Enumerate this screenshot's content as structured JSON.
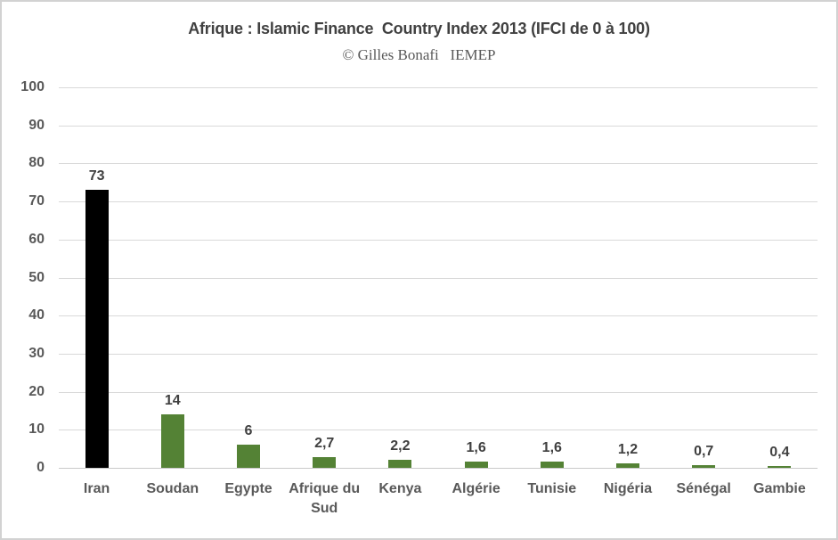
{
  "chart_data": {
    "type": "bar",
    "title": "Afrique : Islamic Finance  Country Index 2013 (IFCI de 0 à 100)",
    "subtitle": "© Gilles Bonafi   IEMEP",
    "categories": [
      "Iran",
      "Soudan",
      "Egypte",
      "Afrique du Sud",
      "Kenya",
      "Algérie",
      "Tunisie",
      "Nigéria",
      "Sénégal",
      "Gambie"
    ],
    "values": [
      73,
      14,
      6,
      2.7,
      2.2,
      1.6,
      1.6,
      1.2,
      0.7,
      0.4
    ],
    "value_labels": [
      "73",
      "14",
      "6",
      "2,7",
      "2,2",
      "1,6",
      "1,6",
      "1,2",
      "0,7",
      "0,4"
    ],
    "bar_colors": [
      "#000000",
      "#548235",
      "#548235",
      "#548235",
      "#548235",
      "#548235",
      "#548235",
      "#548235",
      "#548235",
      "#548235"
    ],
    "xlabel": "",
    "ylabel": "",
    "ylim": [
      0,
      100
    ],
    "yticks": [
      0,
      10,
      20,
      30,
      40,
      50,
      60,
      70,
      80,
      90,
      100
    ],
    "grid": true,
    "legend": "none",
    "colors": {
      "bar_default": "#548235",
      "bar_highlight": "#000000",
      "gridline": "#d9d9d9",
      "axis_line": "#c9c9c9",
      "tick_label": "#595959",
      "category_label": "#595959",
      "value_label": "#404040",
      "title": "#404040",
      "subtitle": "#595959",
      "frame_border": "#d2d2d2",
      "background": "#ffffff"
    }
  }
}
